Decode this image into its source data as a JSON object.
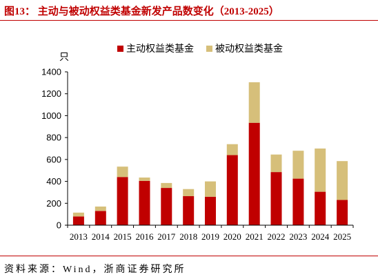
{
  "figure": {
    "title": "图13： 主动与被动权益类基金新发产品数变化（2013-2025）",
    "source": "资料来源：Wind，浙商证券研究所"
  },
  "colors": {
    "accent": "#C00000",
    "axis": "#000000"
  },
  "chart_data": {
    "type": "bar",
    "stacked": true,
    "categories": [
      "2013",
      "2014",
      "2015",
      "2016",
      "2017",
      "2018",
      "2019",
      "2020",
      "2021",
      "2022",
      "2023",
      "2024",
      "2025"
    ],
    "series": [
      {
        "name": "主动权益类基金",
        "color": "#C00000",
        "values": [
          80,
          130,
          440,
          405,
          340,
          265,
          260,
          640,
          935,
          485,
          425,
          305,
          230
        ]
      },
      {
        "name": "被动权益类基金",
        "color": "#D6BF7A",
        "values": [
          35,
          40,
          95,
          30,
          45,
          65,
          140,
          100,
          370,
          160,
          255,
          395,
          355
        ]
      }
    ],
    "ylabel": "只",
    "xlabel": "",
    "ylim": [
      0,
      1400
    ],
    "yticks": [
      0,
      200,
      400,
      600,
      800,
      1000,
      1200,
      1400
    ],
    "grid": false,
    "legend": "top-center"
  }
}
